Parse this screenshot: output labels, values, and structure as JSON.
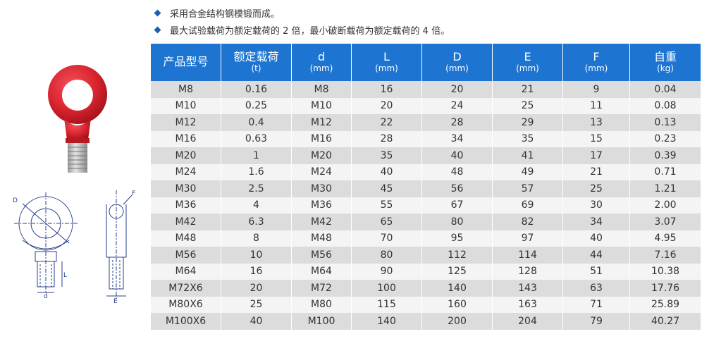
{
  "bullets": [
    "采用合金结构钢模锻而成。",
    "最大试验载荷为额定载荷的 2 倍，最小破断载荷为额定载荷的 4 倍。"
  ],
  "colors": {
    "header": "#1e75d1",
    "row_odd": "#dcdcdc",
    "row_even": "#f4f4f4",
    "bullet": "#1a5fb0",
    "product_red": "#d9232e"
  },
  "drawing_labels": {
    "D": "D",
    "L": "L",
    "d": "d",
    "F": "F",
    "E": "E"
  },
  "table": {
    "headers": [
      {
        "main": "产品型号",
        "sub": ""
      },
      {
        "main": "额定载荷",
        "sub": "(t)"
      },
      {
        "main": "d",
        "sub": "(mm)"
      },
      {
        "main": "L",
        "sub": "(mm)"
      },
      {
        "main": "D",
        "sub": "(mm)"
      },
      {
        "main": "E",
        "sub": "(mm)"
      },
      {
        "main": "F",
        "sub": "(mm)"
      },
      {
        "main": "自重",
        "sub": "(kg)"
      }
    ],
    "rows": [
      [
        "M8",
        "0.16",
        "M8",
        "16",
        "20",
        "21",
        "9",
        "0.04"
      ],
      [
        "M10",
        "0.25",
        "M10",
        "20",
        "24",
        "25",
        "11",
        "0.08"
      ],
      [
        "M12",
        "0.4",
        "M12",
        "22",
        "28",
        "29",
        "13",
        "0.13"
      ],
      [
        "M16",
        "0.63",
        "M16",
        "28",
        "34",
        "35",
        "15",
        "0.23"
      ],
      [
        "M20",
        "1",
        "M20",
        "35",
        "40",
        "41",
        "17",
        "0.39"
      ],
      [
        "M24",
        "1.6",
        "M24",
        "40",
        "48",
        "49",
        "21",
        "0.71"
      ],
      [
        "M30",
        "2.5",
        "M30",
        "45",
        "56",
        "57",
        "25",
        "1.21"
      ],
      [
        "M36",
        "4",
        "M36",
        "55",
        "67",
        "69",
        "30",
        "2.00"
      ],
      [
        "M42",
        "6.3",
        "M42",
        "65",
        "80",
        "82",
        "34",
        "3.07"
      ],
      [
        "M48",
        "8",
        "M48",
        "70",
        "95",
        "97",
        "40",
        "4.95"
      ],
      [
        "M56",
        "10",
        "M56",
        "80",
        "112",
        "114",
        "44",
        "7.16"
      ],
      [
        "M64",
        "16",
        "M64",
        "90",
        "125",
        "128",
        "51",
        "10.38"
      ],
      [
        "M72X6",
        "20",
        "M72",
        "100",
        "140",
        "143",
        "63",
        "17.76"
      ],
      [
        "M80X6",
        "25",
        "M80",
        "115",
        "160",
        "163",
        "71",
        "25.89"
      ],
      [
        "M100X6",
        "40",
        "M100",
        "140",
        "200",
        "204",
        "79",
        "40.27"
      ]
    ]
  }
}
